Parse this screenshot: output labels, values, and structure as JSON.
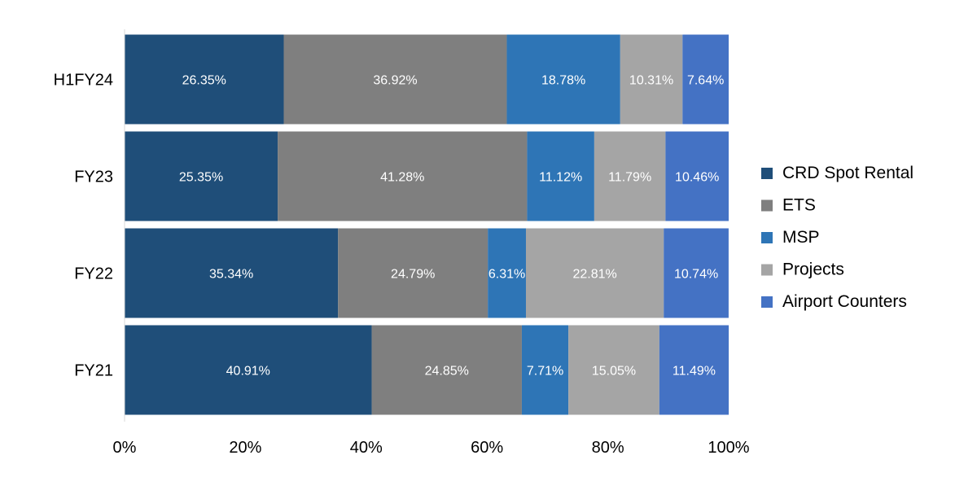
{
  "chart_data": {
    "type": "bar",
    "orientation": "horizontal",
    "stacked": true,
    "percent_axis": true,
    "title": "",
    "xlabel": "",
    "ylabel": "",
    "xlim": [
      0,
      100
    ],
    "x_ticks": [
      "0%",
      "20%",
      "40%",
      "60%",
      "80%",
      "100%"
    ],
    "x_tick_values": [
      0,
      20,
      40,
      60,
      80,
      100
    ],
    "categories": [
      "H1FY24",
      "FY23",
      "FY22",
      "FY21"
    ],
    "series": [
      {
        "name": "CRD Spot Rental",
        "color": "#1f4e79",
        "values": [
          26.35,
          25.35,
          35.34,
          40.91
        ],
        "labels": [
          "26.35%",
          "25.35%",
          "35.34%",
          "40.91%"
        ]
      },
      {
        "name": "ETS",
        "color": "#7f7f7f",
        "values": [
          36.92,
          41.28,
          24.79,
          24.85
        ],
        "labels": [
          "36.92%",
          "41.28%",
          "24.79%",
          "24.85%"
        ]
      },
      {
        "name": "MSP",
        "color": "#2e75b6",
        "values": [
          18.78,
          11.12,
          6.31,
          7.71
        ],
        "labels": [
          "18.78%",
          "11.12%",
          "6.31%",
          "7.71%"
        ]
      },
      {
        "name": "Projects",
        "color": "#a5a5a5",
        "values": [
          10.31,
          11.79,
          22.81,
          15.05
        ],
        "labels": [
          "10.31%",
          "11.79%",
          "22.81%",
          "15.05%"
        ]
      },
      {
        "name": "Airport Counters",
        "color": "#4472c4",
        "values": [
          7.64,
          10.46,
          10.74,
          11.49
        ],
        "labels": [
          "7.64%",
          "10.46%",
          "10.74%",
          "11.49%"
        ]
      }
    ],
    "legend_position": "right",
    "grid": false
  }
}
